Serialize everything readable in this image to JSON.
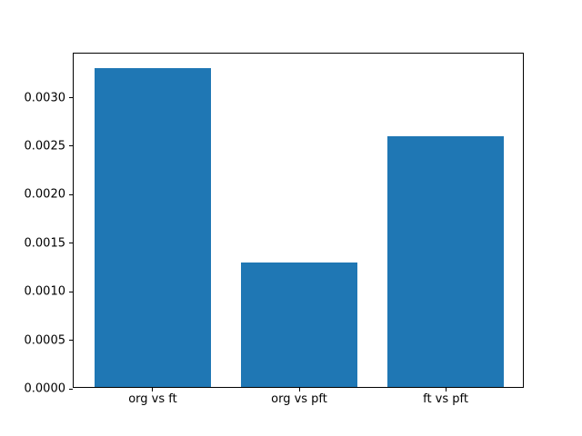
{
  "chart_data": {
    "type": "bar",
    "categories": [
      "org vs ft",
      "org vs pft",
      "ft vs pft"
    ],
    "values": [
      0.00329,
      0.00128,
      0.00258
    ],
    "title": "",
    "xlabel": "",
    "ylabel": "",
    "ylim": [
      0,
      0.003455
    ],
    "yticks": [
      0.0,
      0.0005,
      0.001,
      0.0015,
      0.002,
      0.0025,
      0.003
    ],
    "ytick_labels": [
      "0.0000",
      "0.0005",
      "0.0010",
      "0.0015",
      "0.0020",
      "0.0025",
      "0.0030"
    ],
    "bar_color": "#1f77b4",
    "bar_width_fraction": 0.8,
    "grid": false,
    "legend": null
  }
}
